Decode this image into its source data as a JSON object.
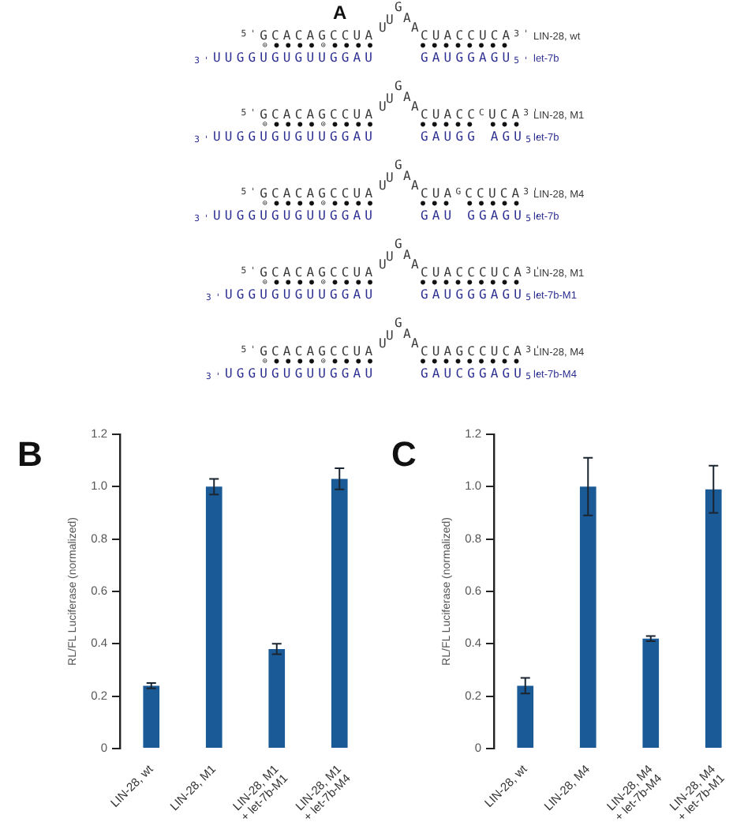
{
  "chart_data": [
    {
      "type": "other",
      "title": "A",
      "annotations": [
        "$^{5'}$GCACAGCCUA",
        "UUGAA",
        "CUACCUCA$^{3'}$",
        "⊙●●●●⊙●●●●",
        "●●●●●●●●",
        "$_{3'}$UUGGUGUGUUGGAU",
        "GAUGGAGU$_{5'}$",
        "LIN-28, wt",
        "let-7b",
        "$^{5'}$GCACAGCCUA",
        "UUGAA",
        "CUACC$^{C}$UCA$^{3'}$",
        "⊙●●●●⊙●●●●",
        "●●●●● ●●●",
        "$_{3'}$UUGGUGUGUUGGAU",
        "GAUGG AGU$_{5'}$",
        "LIN-28, M1",
        "let-7b",
        "$^{5'}$GCACAGCCUA",
        "UUGAA",
        "CUA$^{G}$CCUCA$^{3'}$",
        "⊙●●●●⊙●●●●",
        "●●● ●●●●●",
        "$_{3'}$UUGGUGUGUUGGAU",
        "GAU GGAGU$_{5'}$",
        "LIN-28, M4",
        "let-7b",
        "$^{5'}$GCACAGCCUA",
        "UUGAA",
        "CUACCCUCA$^{3'}$",
        "⊙●●●●⊙●●●●",
        "●●●●●●●●●",
        "$_{3'}$UGGUGUGUUGGAU",
        "GAUGGGAGU$_{5'}$",
        "LIN-28, M1",
        "let-7b-M1",
        "$^{5'}$GCACAGCCUA",
        "UUGAA",
        "CUAGCCUCA$^{3'}$",
        "⊙●●●●⊙●●●●",
        "●●●●●●●●●",
        "$_{3'}$UGGUGUGUUGGAU",
        "GAUCGGAGU$_{5'}$",
        "LIN-28, M4",
        "let-7b-M4"
      ]
    },
    {
      "type": "bar",
      "title": "B",
      "ylabel": "RL/FL Luciferase (normalized)",
      "categories": [
        "LIN-28, wt",
        "LIN-28, M1",
        "LIN-28, M1\n+ let-7b-M1",
        "LIN-28, M1\n+ let-7b-M4"
      ],
      "values": [
        0.24,
        1.0,
        0.38,
        1.03
      ],
      "errors": [
        0.01,
        0.03,
        0.02,
        0.04
      ],
      "color": "#1a5a96",
      "ylim": [
        0,
        1.2
      ],
      "yticks": [
        0,
        0.2,
        0.4,
        0.6,
        0.8,
        {
          "value": 1,
          "label": "1.0"
        },
        1.2
      ],
      "grid": false
    },
    {
      "type": "bar",
      "title": "C",
      "ylabel": "RL/FL Luciferase (normalized)",
      "categories": [
        "LIN-28, wt",
        "LIN-28, M4",
        "LIN-28, M4\n+ let-7b-M4",
        "LIN-28, M4\n+ let-7b-M1"
      ],
      "values": [
        0.24,
        1.0,
        0.42,
        0.99
      ],
      "errors": [
        0.03,
        0.11,
        0.01,
        0.09
      ],
      "color": "#1a5a96",
      "ylim": [
        0,
        1.2
      ],
      "yticks": [
        0,
        0.2,
        0.4,
        0.6,
        0.8,
        {
          "value": 1,
          "label": "1.0"
        },
        1.2
      ],
      "grid": false
    }
  ]
}
